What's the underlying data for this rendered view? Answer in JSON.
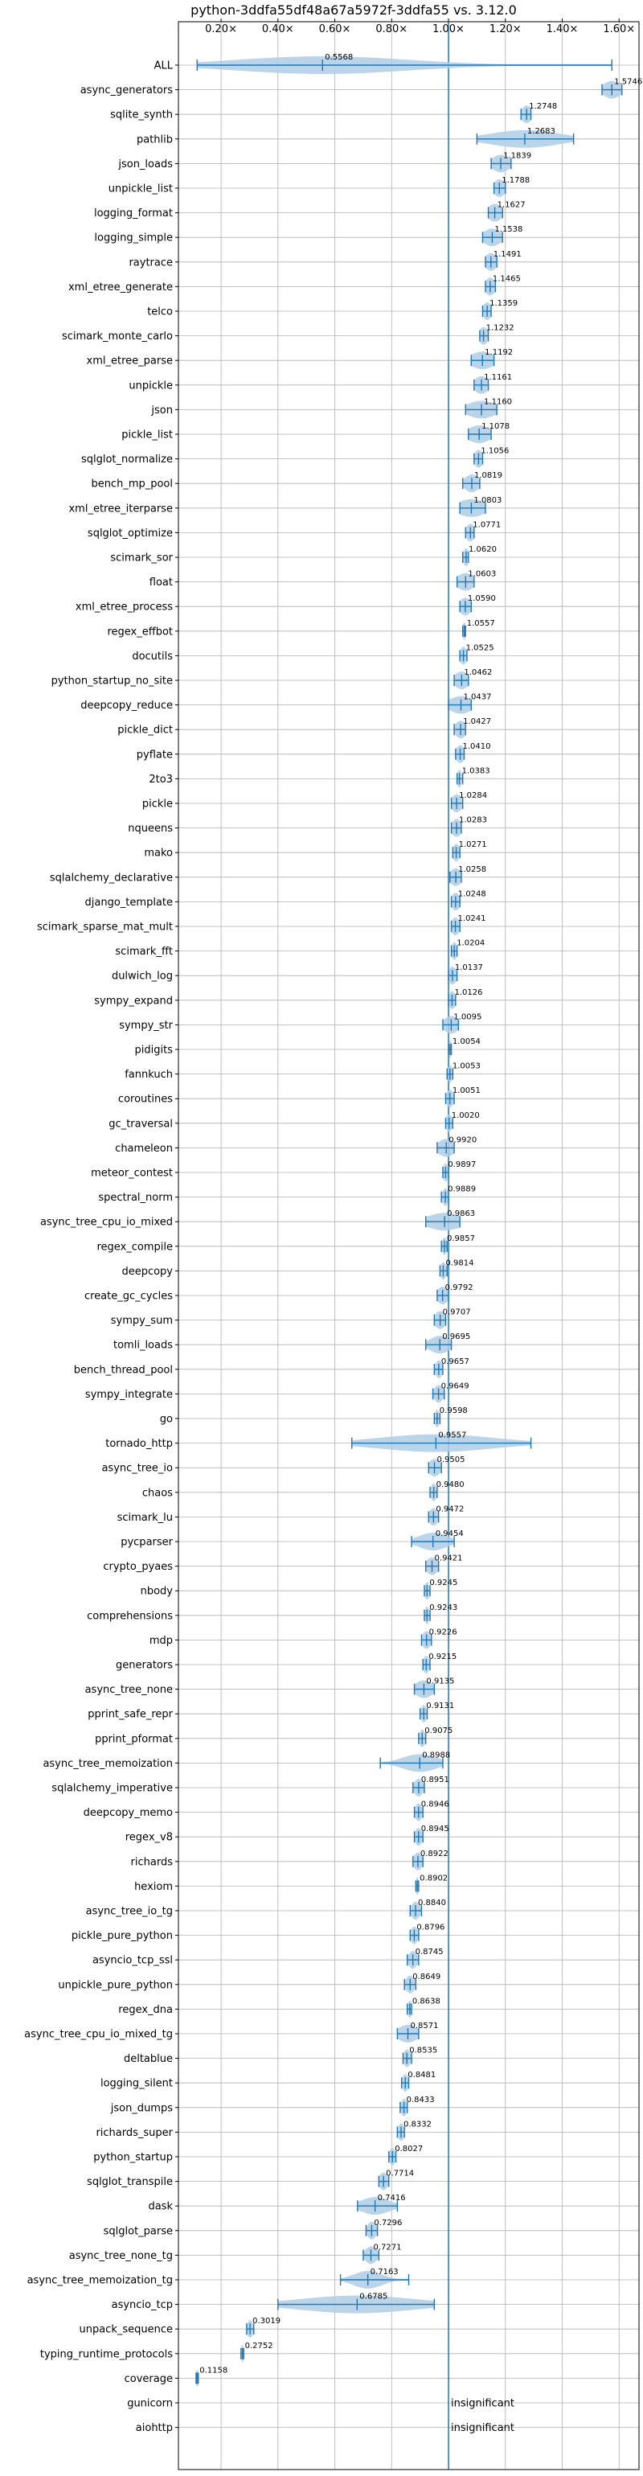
{
  "chart_data": {
    "type": "violin",
    "orientation": "horizontal",
    "title": "python-3ddfa55df48a67a5972f-3ddfa55 vs. 3.12.0",
    "xlim": [
      0.05,
      1.67
    ],
    "xticks": [
      "0.20×",
      "0.40×",
      "0.60×",
      "0.80×",
      "1.00×",
      "1.20×",
      "1.40×",
      "1.60×"
    ],
    "xtick_values": [
      0.2,
      0.4,
      0.6,
      0.8,
      1.0,
      1.2,
      1.4,
      1.6
    ],
    "reference_line": 1.0,
    "grid": true,
    "colors": {
      "line": "#1f77b4",
      "fill": "#aecde6",
      "grid": "#b0b0b0"
    },
    "insignificant_label": "insignificant",
    "benchmarks": [
      {
        "name": "ALL",
        "mean": 0.5568,
        "min": 0.1158,
        "max": 1.5746,
        "spread": 0.3,
        "label": "0.5568"
      },
      {
        "name": "async_generators",
        "mean": 1.5746,
        "min": 1.54,
        "max": 1.61,
        "spread": 0.03,
        "label": "1.5746"
      },
      {
        "name": "sqlite_synth",
        "mean": 1.2748,
        "min": 1.255,
        "max": 1.29,
        "spread": 0.018,
        "label": "1.2748"
      },
      {
        "name": "pathlib",
        "mean": 1.2683,
        "min": 1.1,
        "max": 1.44,
        "spread": 0.12,
        "label": "1.2683"
      },
      {
        "name": "json_loads",
        "mean": 1.1839,
        "min": 1.15,
        "max": 1.22,
        "spread": 0.03,
        "label": "1.1839"
      },
      {
        "name": "unpickle_list",
        "mean": 1.1788,
        "min": 1.16,
        "max": 1.2,
        "spread": 0.02,
        "label": "1.1788"
      },
      {
        "name": "logging_format",
        "mean": 1.1627,
        "min": 1.14,
        "max": 1.19,
        "spread": 0.025,
        "label": "1.1627"
      },
      {
        "name": "logging_simple",
        "mean": 1.1538,
        "min": 1.12,
        "max": 1.19,
        "spread": 0.03,
        "label": "1.1538"
      },
      {
        "name": "raytrace",
        "mean": 1.1491,
        "min": 1.13,
        "max": 1.17,
        "spread": 0.02,
        "label": "1.1491"
      },
      {
        "name": "xml_etree_generate",
        "mean": 1.1465,
        "min": 1.13,
        "max": 1.165,
        "spread": 0.018,
        "label": "1.1465"
      },
      {
        "name": "telco",
        "mean": 1.1359,
        "min": 1.12,
        "max": 1.15,
        "spread": 0.015,
        "label": "1.1359"
      },
      {
        "name": "scimark_monte_carlo",
        "mean": 1.1232,
        "min": 1.11,
        "max": 1.14,
        "spread": 0.015,
        "label": "1.1232"
      },
      {
        "name": "xml_etree_parse",
        "mean": 1.1192,
        "min": 1.08,
        "max": 1.16,
        "spread": 0.04,
        "label": "1.1192"
      },
      {
        "name": "unpickle",
        "mean": 1.1161,
        "min": 1.09,
        "max": 1.14,
        "spread": 0.025,
        "label": "1.1161"
      },
      {
        "name": "json",
        "mean": 1.116,
        "min": 1.06,
        "max": 1.17,
        "spread": 0.05,
        "label": "1.1160"
      },
      {
        "name": "pickle_list",
        "mean": 1.1078,
        "min": 1.07,
        "max": 1.15,
        "spread": 0.04,
        "label": "1.1078"
      },
      {
        "name": "sqlglot_normalize",
        "mean": 1.1056,
        "min": 1.09,
        "max": 1.12,
        "spread": 0.015,
        "label": "1.1056"
      },
      {
        "name": "bench_mp_pool",
        "mean": 1.0819,
        "min": 1.05,
        "max": 1.11,
        "spread": 0.025,
        "label": "1.0819"
      },
      {
        "name": "xml_etree_iterparse",
        "mean": 1.0803,
        "min": 1.04,
        "max": 1.13,
        "spread": 0.05,
        "label": "1.0803"
      },
      {
        "name": "sqlglot_optimize",
        "mean": 1.0771,
        "min": 1.06,
        "max": 1.09,
        "spread": 0.015,
        "label": "1.0771"
      },
      {
        "name": "scimark_sor",
        "mean": 1.062,
        "min": 1.05,
        "max": 1.07,
        "spread": 0.01,
        "label": "1.0620"
      },
      {
        "name": "float",
        "mean": 1.0603,
        "min": 1.03,
        "max": 1.09,
        "spread": 0.03,
        "label": "1.0603"
      },
      {
        "name": "xml_etree_process",
        "mean": 1.059,
        "min": 1.04,
        "max": 1.08,
        "spread": 0.02,
        "label": "1.0590"
      },
      {
        "name": "regex_effbot",
        "mean": 1.0557,
        "min": 1.05,
        "max": 1.06,
        "spread": 0.006,
        "label": "1.0557"
      },
      {
        "name": "docutils",
        "mean": 1.0525,
        "min": 1.04,
        "max": 1.065,
        "spread": 0.012,
        "label": "1.0525"
      },
      {
        "name": "python_startup_no_site",
        "mean": 1.0462,
        "min": 1.02,
        "max": 1.07,
        "spread": 0.025,
        "label": "1.0462"
      },
      {
        "name": "deepcopy_reduce",
        "mean": 1.0437,
        "min": 1.0,
        "max": 1.08,
        "spread": 0.04,
        "label": "1.0437"
      },
      {
        "name": "pickle_dict",
        "mean": 1.0427,
        "min": 1.02,
        "max": 1.06,
        "spread": 0.02,
        "label": "1.0427"
      },
      {
        "name": "pyflate",
        "mean": 1.041,
        "min": 1.025,
        "max": 1.055,
        "spread": 0.015,
        "label": "1.0410"
      },
      {
        "name": "2to3",
        "mean": 1.0383,
        "min": 1.03,
        "max": 1.05,
        "spread": 0.008,
        "label": "1.0383"
      },
      {
        "name": "pickle",
        "mean": 1.0284,
        "min": 1.01,
        "max": 1.05,
        "spread": 0.02,
        "label": "1.0284"
      },
      {
        "name": "nqueens",
        "mean": 1.0283,
        "min": 1.01,
        "max": 1.045,
        "spread": 0.018,
        "label": "1.0283"
      },
      {
        "name": "mako",
        "mean": 1.0271,
        "min": 1.015,
        "max": 1.04,
        "spread": 0.012,
        "label": "1.0271"
      },
      {
        "name": "sqlalchemy_declarative",
        "mean": 1.0258,
        "min": 1.005,
        "max": 1.045,
        "spread": 0.02,
        "label": "1.0258"
      },
      {
        "name": "django_template",
        "mean": 1.0248,
        "min": 1.01,
        "max": 1.04,
        "spread": 0.015,
        "label": "1.0248"
      },
      {
        "name": "scimark_sparse_mat_mult",
        "mean": 1.0241,
        "min": 1.01,
        "max": 1.04,
        "spread": 0.015,
        "label": "1.0241"
      },
      {
        "name": "scimark_fft",
        "mean": 1.0204,
        "min": 1.01,
        "max": 1.03,
        "spread": 0.01,
        "label": "1.0204"
      },
      {
        "name": "dulwich_log",
        "mean": 1.0137,
        "min": 1.0,
        "max": 1.03,
        "spread": 0.015,
        "label": "1.0137"
      },
      {
        "name": "sympy_expand",
        "mean": 1.0126,
        "min": 1.0,
        "max": 1.025,
        "spread": 0.012,
        "label": "1.0126"
      },
      {
        "name": "sympy_str",
        "mean": 1.0095,
        "min": 0.98,
        "max": 1.035,
        "spread": 0.025,
        "label": "1.0095"
      },
      {
        "name": "pidigits",
        "mean": 1.0054,
        "min": 1.0,
        "max": 1.01,
        "spread": 0.005,
        "label": "1.0054"
      },
      {
        "name": "fannkuch",
        "mean": 1.0053,
        "min": 0.995,
        "max": 1.015,
        "spread": 0.008,
        "label": "1.0053"
      },
      {
        "name": "coroutines",
        "mean": 1.0051,
        "min": 0.99,
        "max": 1.02,
        "spread": 0.012,
        "label": "1.0051"
      },
      {
        "name": "gc_traversal",
        "mean": 1.002,
        "min": 0.99,
        "max": 1.015,
        "spread": 0.01,
        "label": "1.0020"
      },
      {
        "name": "chameleon",
        "mean": 0.992,
        "min": 0.96,
        "max": 1.02,
        "spread": 0.03,
        "label": "0.9920"
      },
      {
        "name": "meteor_contest",
        "mean": 0.9897,
        "min": 0.98,
        "max": 1.0,
        "spread": 0.01,
        "label": "0.9897"
      },
      {
        "name": "spectral_norm",
        "mean": 0.9889,
        "min": 0.975,
        "max": 1.0,
        "spread": 0.01,
        "label": "0.9889"
      },
      {
        "name": "async_tree_cpu_io_mixed",
        "mean": 0.9863,
        "min": 0.92,
        "max": 1.04,
        "spread": 0.06,
        "label": "0.9863"
      },
      {
        "name": "regex_compile",
        "mean": 0.9857,
        "min": 0.975,
        "max": 0.995,
        "spread": 0.008,
        "label": "0.9857"
      },
      {
        "name": "deepcopy",
        "mean": 0.9814,
        "min": 0.97,
        "max": 0.995,
        "spread": 0.01,
        "label": "0.9814"
      },
      {
        "name": "create_gc_cycles",
        "mean": 0.9792,
        "min": 0.96,
        "max": 1.0,
        "spread": 0.02,
        "label": "0.9792"
      },
      {
        "name": "sympy_sum",
        "mean": 0.9707,
        "min": 0.95,
        "max": 0.99,
        "spread": 0.02,
        "label": "0.9707"
      },
      {
        "name": "tomli_loads",
        "mean": 0.9695,
        "min": 0.92,
        "max": 1.01,
        "spread": 0.035,
        "label": "0.9695"
      },
      {
        "name": "bench_thread_pool",
        "mean": 0.9657,
        "min": 0.95,
        "max": 0.98,
        "spread": 0.012,
        "label": "0.9657"
      },
      {
        "name": "sympy_integrate",
        "mean": 0.9649,
        "min": 0.945,
        "max": 0.985,
        "spread": 0.015,
        "label": "0.9649"
      },
      {
        "name": "go",
        "mean": 0.9598,
        "min": 0.95,
        "max": 0.97,
        "spread": 0.008,
        "label": "0.9598"
      },
      {
        "name": "tornado_http",
        "mean": 0.9557,
        "min": 0.66,
        "max": 1.29,
        "spread": 0.2,
        "label": "0.9557"
      },
      {
        "name": "async_tree_io",
        "mean": 0.9505,
        "min": 0.93,
        "max": 0.975,
        "spread": 0.02,
        "label": "0.9505"
      },
      {
        "name": "chaos",
        "mean": 0.948,
        "min": 0.935,
        "max": 0.96,
        "spread": 0.01,
        "label": "0.9480"
      },
      {
        "name": "scimark_lu",
        "mean": 0.9472,
        "min": 0.93,
        "max": 0.965,
        "spread": 0.015,
        "label": "0.9472"
      },
      {
        "name": "pycparser",
        "mean": 0.9454,
        "min": 0.87,
        "max": 1.02,
        "spread": 0.05,
        "label": "0.9454"
      },
      {
        "name": "crypto_pyaes",
        "mean": 0.9421,
        "min": 0.92,
        "max": 0.965,
        "spread": 0.02,
        "label": "0.9421"
      },
      {
        "name": "nbody",
        "mean": 0.9245,
        "min": 0.915,
        "max": 0.935,
        "spread": 0.008,
        "label": "0.9245"
      },
      {
        "name": "comprehensions",
        "mean": 0.9243,
        "min": 0.915,
        "max": 0.935,
        "spread": 0.008,
        "label": "0.9243"
      },
      {
        "name": "mdp",
        "mean": 0.9226,
        "min": 0.905,
        "max": 0.94,
        "spread": 0.015,
        "label": "0.9226"
      },
      {
        "name": "generators",
        "mean": 0.9215,
        "min": 0.91,
        "max": 0.935,
        "spread": 0.01,
        "label": "0.9215"
      },
      {
        "name": "async_tree_none",
        "mean": 0.9135,
        "min": 0.88,
        "max": 0.95,
        "spread": 0.03,
        "label": "0.9135"
      },
      {
        "name": "pprint_safe_repr",
        "mean": 0.9131,
        "min": 0.9,
        "max": 0.925,
        "spread": 0.01,
        "label": "0.9131"
      },
      {
        "name": "pprint_pformat",
        "mean": 0.9075,
        "min": 0.895,
        "max": 0.92,
        "spread": 0.01,
        "label": "0.9075"
      },
      {
        "name": "async_tree_memoization",
        "mean": 0.8988,
        "min": 0.76,
        "max": 0.98,
        "spread": 0.06,
        "label": "0.8988"
      },
      {
        "name": "sqlalchemy_imperative",
        "mean": 0.8951,
        "min": 0.875,
        "max": 0.915,
        "spread": 0.015,
        "label": "0.8951"
      },
      {
        "name": "deepcopy_memo",
        "mean": 0.8946,
        "min": 0.88,
        "max": 0.91,
        "spread": 0.012,
        "label": "0.8946"
      },
      {
        "name": "regex_v8",
        "mean": 0.8945,
        "min": 0.88,
        "max": 0.91,
        "spread": 0.012,
        "label": "0.8945"
      },
      {
        "name": "richards",
        "mean": 0.8922,
        "min": 0.875,
        "max": 0.91,
        "spread": 0.015,
        "label": "0.8922"
      },
      {
        "name": "hexiom",
        "mean": 0.8902,
        "min": 0.885,
        "max": 0.895,
        "spread": 0.005,
        "label": "0.8902"
      },
      {
        "name": "async_tree_io_tg",
        "mean": 0.884,
        "min": 0.865,
        "max": 0.905,
        "spread": 0.015,
        "label": "0.8840"
      },
      {
        "name": "pickle_pure_python",
        "mean": 0.8796,
        "min": 0.865,
        "max": 0.895,
        "spread": 0.012,
        "label": "0.8796"
      },
      {
        "name": "asyncio_tcp_ssl",
        "mean": 0.8745,
        "min": 0.855,
        "max": 0.895,
        "spread": 0.015,
        "label": "0.8745"
      },
      {
        "name": "unpickle_pure_python",
        "mean": 0.8649,
        "min": 0.845,
        "max": 0.885,
        "spread": 0.015,
        "label": "0.8649"
      },
      {
        "name": "regex_dna",
        "mean": 0.8638,
        "min": 0.855,
        "max": 0.87,
        "spread": 0.006,
        "label": "0.8638"
      },
      {
        "name": "async_tree_cpu_io_mixed_tg",
        "mean": 0.8571,
        "min": 0.82,
        "max": 0.895,
        "spread": 0.035,
        "label": "0.8571"
      },
      {
        "name": "deltablue",
        "mean": 0.8535,
        "min": 0.84,
        "max": 0.87,
        "spread": 0.012,
        "label": "0.8535"
      },
      {
        "name": "logging_silent",
        "mean": 0.8481,
        "min": 0.835,
        "max": 0.86,
        "spread": 0.01,
        "label": "0.8481"
      },
      {
        "name": "json_dumps",
        "mean": 0.8433,
        "min": 0.83,
        "max": 0.855,
        "spread": 0.01,
        "label": "0.8433"
      },
      {
        "name": "richards_super",
        "mean": 0.8332,
        "min": 0.82,
        "max": 0.845,
        "spread": 0.01,
        "label": "0.8332"
      },
      {
        "name": "python_startup",
        "mean": 0.8027,
        "min": 0.79,
        "max": 0.815,
        "spread": 0.01,
        "label": "0.8027"
      },
      {
        "name": "sqlglot_transpile",
        "mean": 0.7714,
        "min": 0.755,
        "max": 0.79,
        "spread": 0.015,
        "label": "0.7714"
      },
      {
        "name": "dask",
        "mean": 0.7416,
        "min": 0.68,
        "max": 0.82,
        "spread": 0.05,
        "label": "0.7416"
      },
      {
        "name": "sqlglot_parse",
        "mean": 0.7296,
        "min": 0.71,
        "max": 0.75,
        "spread": 0.015,
        "label": "0.7296"
      },
      {
        "name": "async_tree_none_tg",
        "mean": 0.7271,
        "min": 0.7,
        "max": 0.755,
        "spread": 0.02,
        "label": "0.7271"
      },
      {
        "name": "async_tree_memoization_tg",
        "mean": 0.7163,
        "min": 0.62,
        "max": 0.86,
        "spread": 0.05,
        "label": "0.7163"
      },
      {
        "name": "asyncio_tcp",
        "mean": 0.6785,
        "min": 0.4,
        "max": 0.95,
        "spread": 0.2,
        "label": "0.6785"
      },
      {
        "name": "unpack_sequence",
        "mean": 0.3019,
        "min": 0.29,
        "max": 0.315,
        "spread": 0.01,
        "label": "0.3019"
      },
      {
        "name": "typing_runtime_protocols",
        "mean": 0.2752,
        "min": 0.27,
        "max": 0.28,
        "spread": 0.004,
        "label": "0.2752"
      },
      {
        "name": "coverage",
        "mean": 0.1158,
        "min": 0.112,
        "max": 0.12,
        "spread": 0.004,
        "label": "0.1158"
      },
      {
        "name": "gunicorn",
        "insignificant": true
      },
      {
        "name": "aiohttp",
        "insignificant": true
      }
    ]
  }
}
